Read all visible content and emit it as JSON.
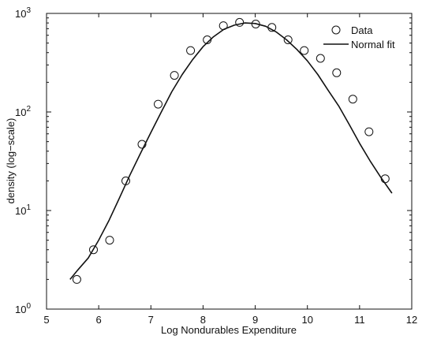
{
  "chart_data": {
    "type": "scatter",
    "title": "",
    "xlabel": "Log Nondurables Expenditure",
    "ylabel": "density (log−scale)",
    "xlim": [
      5,
      12
    ],
    "ylim": [
      1,
      1000
    ],
    "yscale": "log",
    "grid": false,
    "legend_position": "top-right",
    "x_ticks": [
      "5",
      "6",
      "7",
      "8",
      "9",
      "10",
      "11",
      "12"
    ],
    "y_ticks": [
      {
        "base": "10",
        "exp": "0"
      },
      {
        "base": "10",
        "exp": "1"
      },
      {
        "base": "10",
        "exp": "2"
      },
      {
        "base": "10",
        "exp": "3"
      }
    ],
    "series": [
      {
        "name": "Data",
        "kind": "markers",
        "marker": "open-circle",
        "color": "#111111",
        "x": [
          5.58,
          5.9,
          6.21,
          6.52,
          6.83,
          7.14,
          7.45,
          7.76,
          8.08,
          8.39,
          8.7,
          9.01,
          9.32,
          9.63,
          9.94,
          10.25,
          10.56,
          10.87,
          11.18,
          11.49
        ],
        "y": [
          2,
          4,
          5,
          20,
          47,
          120,
          235,
          420,
          540,
          750,
          810,
          780,
          720,
          540,
          420,
          350,
          250,
          135,
          63,
          21
        ]
      },
      {
        "name": "Normal fit",
        "kind": "line",
        "color": "#111111",
        "x": [
          5.45,
          5.6,
          5.8,
          6.0,
          6.2,
          6.4,
          6.6,
          6.8,
          7.0,
          7.2,
          7.4,
          7.6,
          7.8,
          8.0,
          8.2,
          8.4,
          8.6,
          8.8,
          9.0,
          9.2,
          9.4,
          9.6,
          9.8,
          10.0,
          10.2,
          10.4,
          10.6,
          10.8,
          11.0,
          11.2,
          11.4,
          11.62
        ],
        "y": [
          2.0,
          2.5,
          3.3,
          5.0,
          8.0,
          13.5,
          23,
          38,
          62,
          100,
          160,
          240,
          340,
          460,
          580,
          690,
          760,
          800,
          790,
          740,
          650,
          540,
          430,
          330,
          240,
          165,
          115,
          75,
          48,
          32,
          22,
          15
        ]
      }
    ]
  }
}
